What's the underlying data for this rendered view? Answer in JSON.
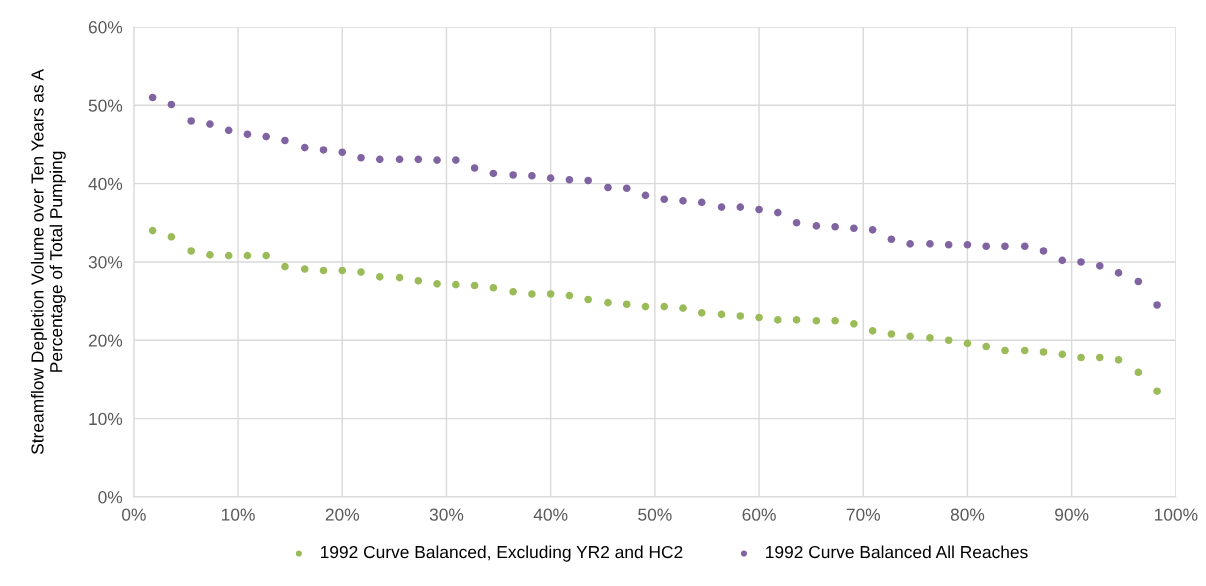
{
  "chart_data": {
    "type": "scatter",
    "ylabel": "Streamflow Depletion Volume over Ten Years as A\nPercentage of Total Pumping",
    "x": [
      1.8,
      3.6,
      5.5,
      7.3,
      9.1,
      10.9,
      12.7,
      14.5,
      16.4,
      18.2,
      20,
      21.8,
      23.6,
      25.5,
      27.3,
      29.1,
      30.9,
      32.7,
      34.5,
      36.4,
      38.2,
      40,
      41.8,
      43.6,
      45.5,
      47.3,
      49.1,
      50.9,
      52.7,
      54.5,
      56.4,
      58.2,
      60,
      61.8,
      63.6,
      65.5,
      67.3,
      69.1,
      70.9,
      72.7,
      74.5,
      76.4,
      78.2,
      80,
      81.8,
      83.6,
      85.5,
      87.3,
      89.1,
      90.9,
      92.7,
      94.5,
      96.4,
      98.2
    ],
    "series": [
      {
        "name": "1992 Curve Balanced, Excluding YR2 and HC2",
        "color": "#9bbb59",
        "values": [
          34,
          33.2,
          31.4,
          30.9,
          30.8,
          30.8,
          30.8,
          29.4,
          29.1,
          28.9,
          28.9,
          28.7,
          28.1,
          28,
          27.6,
          27.2,
          27.1,
          27,
          26.7,
          26.2,
          25.9,
          25.9,
          25.7,
          25.2,
          24.8,
          24.6,
          24.3,
          24.3,
          24.1,
          23.5,
          23.3,
          23.1,
          22.9,
          22.6,
          22.6,
          22.5,
          22.5,
          22.1,
          21.2,
          20.8,
          20.5,
          20.3,
          20,
          19.6,
          19.2,
          18.7,
          18.7,
          18.5,
          18.2,
          17.8,
          17.8,
          17.5,
          15.9,
          13.5
        ]
      },
      {
        "name": "1992 Curve Balanced All Reaches",
        "color": "#8064a2",
        "values": [
          51,
          50.1,
          48,
          47.6,
          46.8,
          46.3,
          46,
          45.5,
          44.6,
          44.3,
          44,
          43.3,
          43.1,
          43.1,
          43.1,
          43,
          43,
          42,
          41.3,
          41.1,
          41,
          40.7,
          40.5,
          40.4,
          39.5,
          39.4,
          38.5,
          38,
          37.8,
          37.6,
          37,
          37,
          36.7,
          36.3,
          35,
          34.6,
          34.5,
          34.3,
          34.1,
          32.9,
          32.3,
          32.3,
          32.2,
          32.2,
          32,
          32,
          32,
          31.4,
          30.2,
          30,
          29.5,
          28.6,
          27.5,
          24.5
        ]
      }
    ],
    "xlim": [
      0,
      100
    ],
    "xticks": [
      {
        "value": 0,
        "label": "0%"
      },
      {
        "value": 10,
        "label": "10%"
      },
      {
        "value": 20,
        "label": "20%"
      },
      {
        "value": 30,
        "label": "30%"
      },
      {
        "value": 40,
        "label": "40%"
      },
      {
        "value": 50,
        "label": "50%"
      },
      {
        "value": 60,
        "label": "60%"
      },
      {
        "value": 70,
        "label": "70%"
      },
      {
        "value": 80,
        "label": "80%"
      },
      {
        "value": 90,
        "label": "90%"
      },
      {
        "value": 100,
        "label": "100%"
      }
    ],
    "ylim": [
      0,
      60
    ],
    "yticks": [
      {
        "value": 0,
        "label": "0%"
      },
      {
        "value": 10,
        "label": "10%"
      },
      {
        "value": 20,
        "label": "20%"
      },
      {
        "value": 30,
        "label": "30%"
      },
      {
        "value": 40,
        "label": "40%"
      },
      {
        "value": 50,
        "label": "50%"
      },
      {
        "value": 60,
        "label": "60%"
      }
    ],
    "grid": true,
    "legend": "bottom",
    "marker": "circle"
  }
}
